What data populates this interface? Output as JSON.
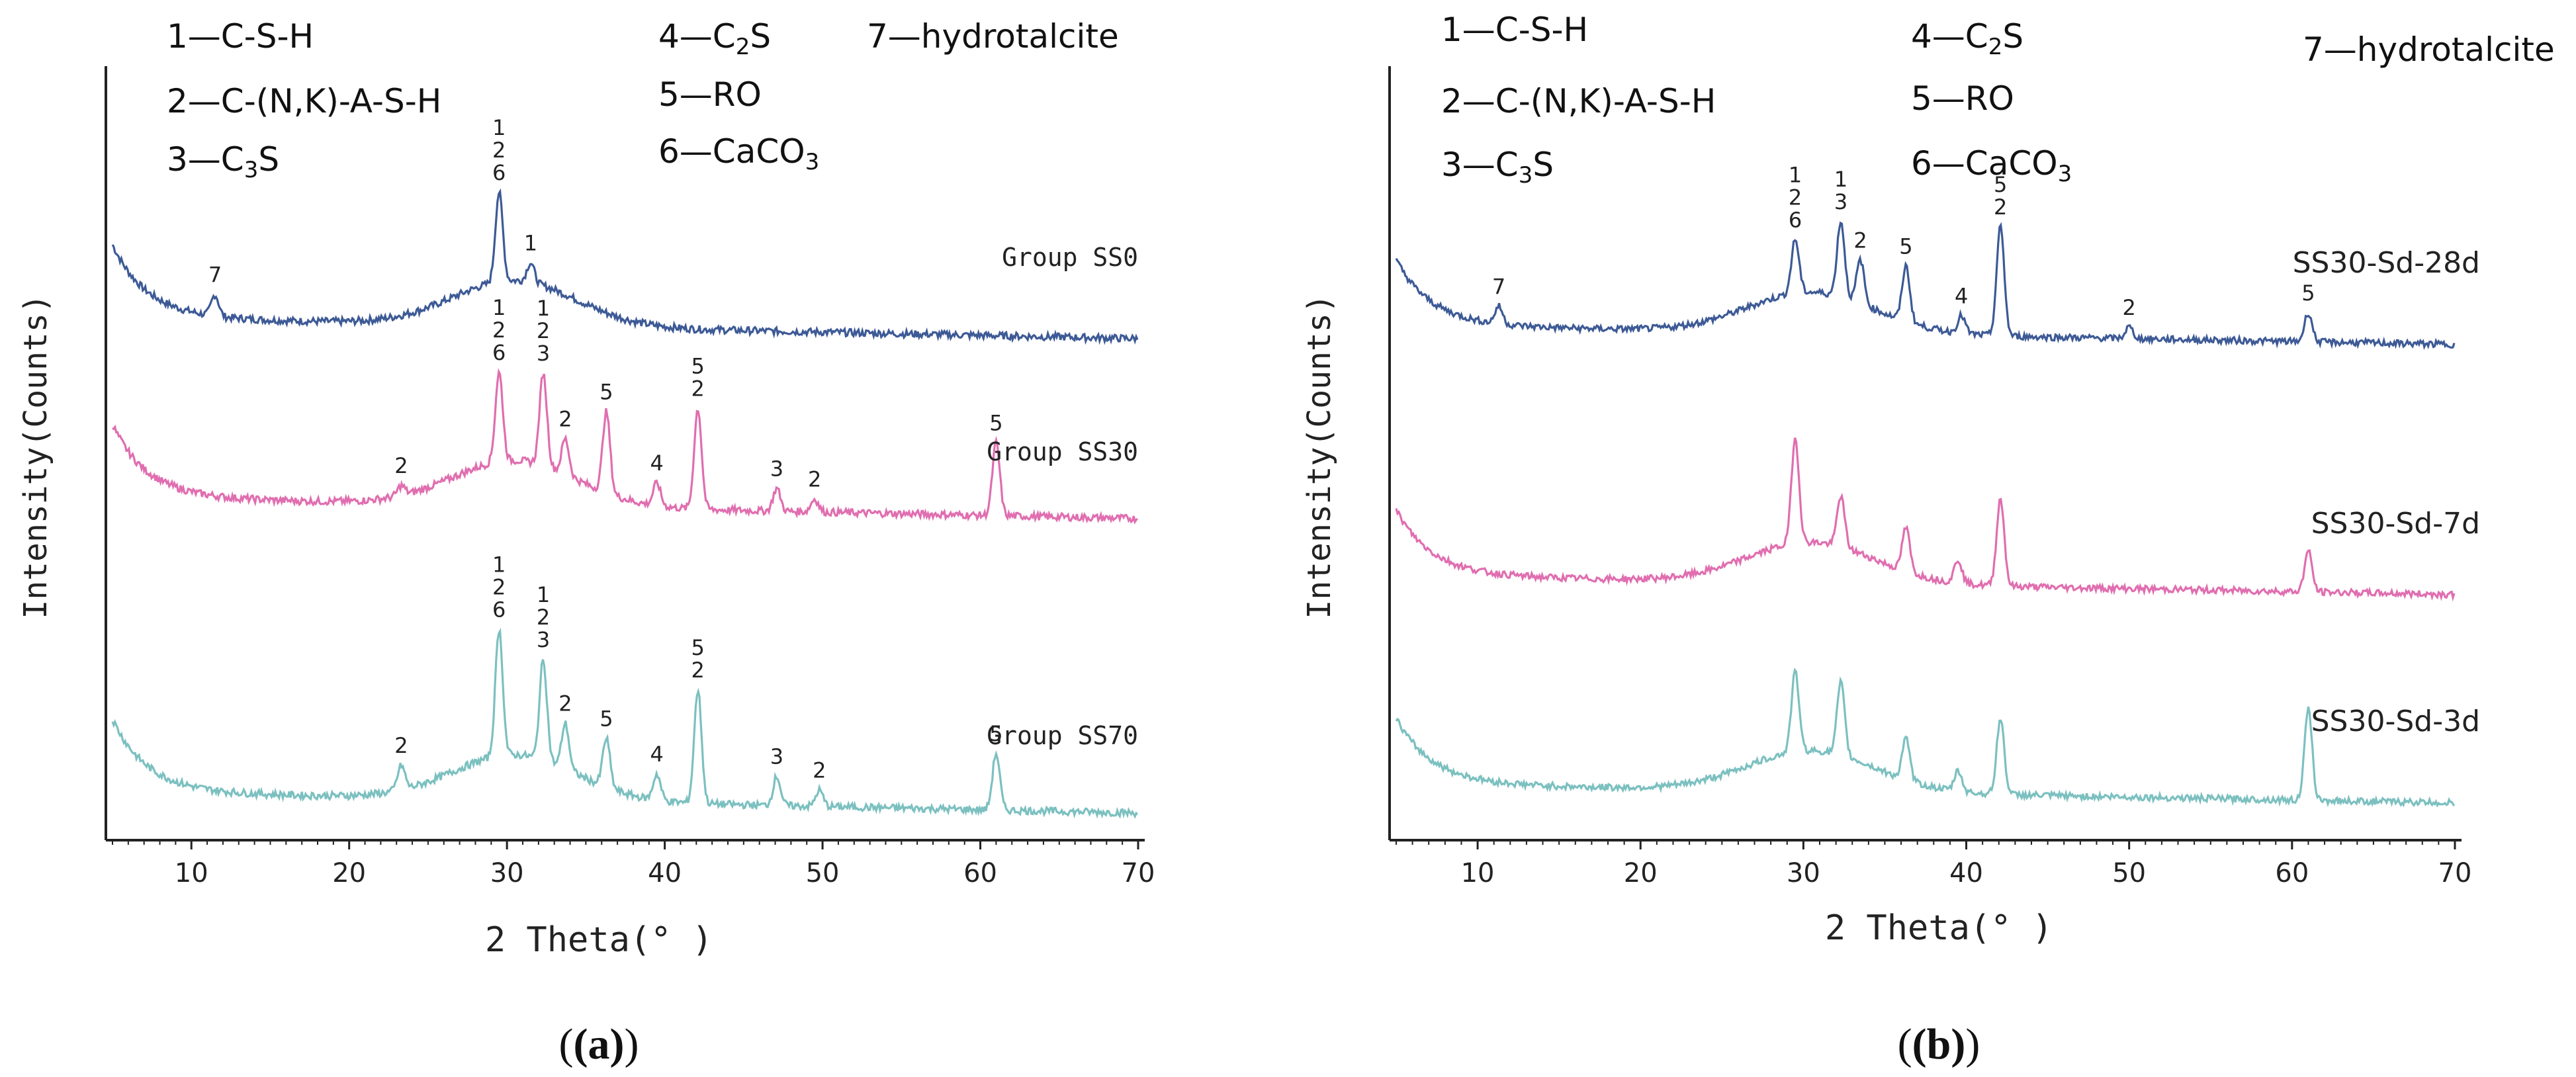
{
  "figure": {
    "panel_labels": [
      "(a)",
      "(b)"
    ]
  },
  "chart_data": [
    {
      "type": "line",
      "panel": "(a)",
      "xlabel": "2 Theta(° )",
      "ylabel": "Intensity(Counts)",
      "xlim": [
        5,
        70
      ],
      "xticks": [
        10,
        20,
        30,
        40,
        50,
        60,
        70
      ],
      "grid": false,
      "legend_entries": [
        "1—C-S-H",
        "2—C-(N,K)-A-S-H",
        "3—C3S",
        "4—C2S",
        "5—RO",
        "6—CaCO3",
        "7—hydrotalcite"
      ],
      "series": [
        {
          "name": "Group SS0",
          "color": "#3d5a96",
          "background": "broad hump centred near 29–30°",
          "peaks": [
            {
              "x": 11.5,
              "labels": [
                "7"
              ]
            },
            {
              "x": 29.5,
              "labels": [
                "1",
                "2",
                "6"
              ]
            },
            {
              "x": 31.5,
              "labels": [
                "1"
              ]
            }
          ]
        },
        {
          "name": "Group SS30",
          "color": "#e06eb0",
          "background": "broad hump centred near 31°",
          "peaks": [
            {
              "x": 23.3,
              "labels": [
                "2"
              ]
            },
            {
              "x": 29.5,
              "labels": [
                "1",
                "2",
                "6"
              ]
            },
            {
              "x": 32.3,
              "labels": [
                "1",
                "2",
                "3"
              ]
            },
            {
              "x": 33.7,
              "labels": [
                "2"
              ]
            },
            {
              "x": 36.3,
              "labels": [
                "5"
              ]
            },
            {
              "x": 39.5,
              "labels": [
                "4"
              ]
            },
            {
              "x": 42.1,
              "labels": [
                "5",
                "2"
              ]
            },
            {
              "x": 47.1,
              "labels": [
                "3"
              ]
            },
            {
              "x": 49.5,
              "labels": [
                "2"
              ]
            },
            {
              "x": 61.0,
              "labels": [
                "5"
              ]
            }
          ]
        },
        {
          "name": "Group SS70",
          "color": "#7cc0c0",
          "background": "broad hump centred near 30°",
          "peaks": [
            {
              "x": 23.3,
              "labels": [
                "2"
              ]
            },
            {
              "x": 29.5,
              "labels": [
                "1",
                "2",
                "6"
              ]
            },
            {
              "x": 32.3,
              "labels": [
                "1",
                "2",
                "3"
              ]
            },
            {
              "x": 33.7,
              "labels": [
                "2"
              ]
            },
            {
              "x": 36.3,
              "labels": [
                "5"
              ]
            },
            {
              "x": 39.5,
              "labels": [
                "4"
              ]
            },
            {
              "x": 42.1,
              "labels": [
                "5",
                "2"
              ]
            },
            {
              "x": 47.1,
              "labels": [
                "3"
              ]
            },
            {
              "x": 49.8,
              "labels": [
                "2"
              ]
            },
            {
              "x": 61.0,
              "labels": [
                "5"
              ]
            }
          ]
        }
      ]
    },
    {
      "type": "line",
      "panel": "(b)",
      "xlabel": "2 Theta(° )",
      "ylabel": "Intensity(Counts)",
      "xlim": [
        5,
        70
      ],
      "xticks": [
        10,
        20,
        30,
        40,
        50,
        60,
        70
      ],
      "grid": false,
      "legend_entries": [
        "1—C-S-H",
        "2—C-(N,K)-A-S-H",
        "3—C3S",
        "4—C2S",
        "5—RO",
        "6—CaCO3",
        "7—hydrotalcite"
      ],
      "series": [
        {
          "name": "SS30-Sd-28d",
          "color": "#3d5a96",
          "background": "broad hump centred near 30°",
          "peaks": [
            {
              "x": 11.3,
              "labels": [
                "7"
              ]
            },
            {
              "x": 29.5,
              "labels": [
                "1",
                "2",
                "6"
              ]
            },
            {
              "x": 32.3,
              "labels": [
                "1",
                "3"
              ]
            },
            {
              "x": 33.5,
              "labels": [
                "2"
              ]
            },
            {
              "x": 36.3,
              "labels": [
                "5"
              ]
            },
            {
              "x": 39.7,
              "labels": [
                "4"
              ]
            },
            {
              "x": 42.1,
              "labels": [
                "5",
                "2"
              ]
            },
            {
              "x": 50.0,
              "labels": [
                "2"
              ]
            },
            {
              "x": 61.0,
              "labels": [
                "5"
              ]
            }
          ]
        },
        {
          "name": "SS30-Sd-7d",
          "color": "#e06eb0",
          "background": "broad hump centred near 31°",
          "peaks": [
            {
              "x": 29.5,
              "labels": []
            },
            {
              "x": 32.3,
              "labels": []
            },
            {
              "x": 36.3,
              "labels": []
            },
            {
              "x": 39.5,
              "labels": []
            },
            {
              "x": 42.1,
              "labels": []
            },
            {
              "x": 61.0,
              "labels": []
            }
          ]
        },
        {
          "name": "SS30-Sd-3d",
          "color": "#7cc0c0",
          "background": "broad hump centred near 31°",
          "peaks": [
            {
              "x": 29.5,
              "labels": []
            },
            {
              "x": 32.3,
              "labels": []
            },
            {
              "x": 36.3,
              "labels": []
            },
            {
              "x": 39.5,
              "labels": []
            },
            {
              "x": 42.1,
              "labels": []
            },
            {
              "x": 61.0,
              "labels": []
            }
          ]
        }
      ]
    }
  ]
}
